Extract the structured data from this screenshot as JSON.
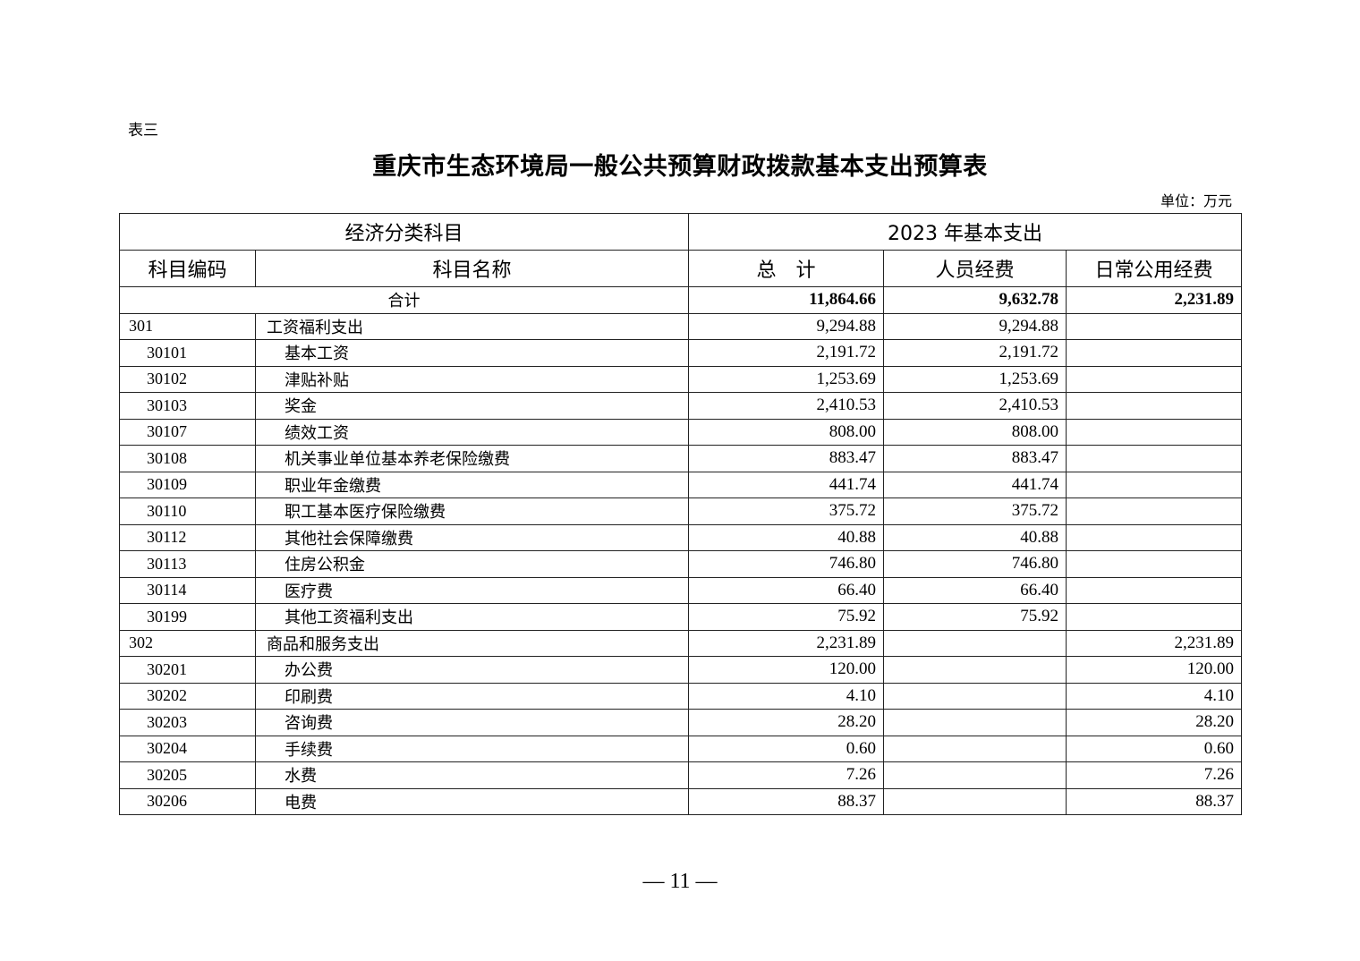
{
  "doc": {
    "table_label": "表三",
    "title": "重庆市生态环境局一般公共预算财政拨款基本支出预算表",
    "unit": "单位：万元",
    "page_number": "— 11 —"
  },
  "table": {
    "group_headers": [
      "经济分类科目",
      "2023 年基本支出"
    ],
    "headers": [
      "科目编码",
      "科目名称",
      "总　计",
      "人员经费",
      "日常公用经费"
    ],
    "total": {
      "label": "合计",
      "total": "11,864.66",
      "personnel": "9,632.78",
      "public": "2,231.89"
    },
    "rows": [
      {
        "code": "301",
        "name": "工资福利支出",
        "total": "9,294.88",
        "personnel": "9,294.88",
        "public": "",
        "level": 1
      },
      {
        "code": "30101",
        "name": "基本工资",
        "total": "2,191.72",
        "personnel": "2,191.72",
        "public": "",
        "level": 2
      },
      {
        "code": "30102",
        "name": "津贴补贴",
        "total": "1,253.69",
        "personnel": "1,253.69",
        "public": "",
        "level": 2
      },
      {
        "code": "30103",
        "name": "奖金",
        "total": "2,410.53",
        "personnel": "2,410.53",
        "public": "",
        "level": 2
      },
      {
        "code": "30107",
        "name": "绩效工资",
        "total": "808.00",
        "personnel": "808.00",
        "public": "",
        "level": 2
      },
      {
        "code": "30108",
        "name": "机关事业单位基本养老保险缴费",
        "total": "883.47",
        "personnel": "883.47",
        "public": "",
        "level": 2
      },
      {
        "code": "30109",
        "name": "职业年金缴费",
        "total": "441.74",
        "personnel": "441.74",
        "public": "",
        "level": 2
      },
      {
        "code": "30110",
        "name": "职工基本医疗保险缴费",
        "total": "375.72",
        "personnel": "375.72",
        "public": "",
        "level": 2
      },
      {
        "code": "30112",
        "name": "其他社会保障缴费",
        "total": "40.88",
        "personnel": "40.88",
        "public": "",
        "level": 2
      },
      {
        "code": "30113",
        "name": "住房公积金",
        "total": "746.80",
        "personnel": "746.80",
        "public": "",
        "level": 2
      },
      {
        "code": "30114",
        "name": "医疗费",
        "total": "66.40",
        "personnel": "66.40",
        "public": "",
        "level": 2
      },
      {
        "code": "30199",
        "name": "其他工资福利支出",
        "total": "75.92",
        "personnel": "75.92",
        "public": "",
        "level": 2
      },
      {
        "code": "302",
        "name": "商品和服务支出",
        "total": "2,231.89",
        "personnel": "",
        "public": "2,231.89",
        "level": 1
      },
      {
        "code": "30201",
        "name": "办公费",
        "total": "120.00",
        "personnel": "",
        "public": "120.00",
        "level": 2
      },
      {
        "code": "30202",
        "name": "印刷费",
        "total": "4.10",
        "personnel": "",
        "public": "4.10",
        "level": 2
      },
      {
        "code": "30203",
        "name": "咨询费",
        "total": "28.20",
        "personnel": "",
        "public": "28.20",
        "level": 2
      },
      {
        "code": "30204",
        "name": "手续费",
        "total": "0.60",
        "personnel": "",
        "public": "0.60",
        "level": 2
      },
      {
        "code": "30205",
        "name": "水费",
        "total": "7.26",
        "personnel": "",
        "public": "7.26",
        "level": 2
      },
      {
        "code": "30206",
        "name": "电费",
        "total": "88.37",
        "personnel": "",
        "public": "88.37",
        "level": 2
      }
    ]
  }
}
